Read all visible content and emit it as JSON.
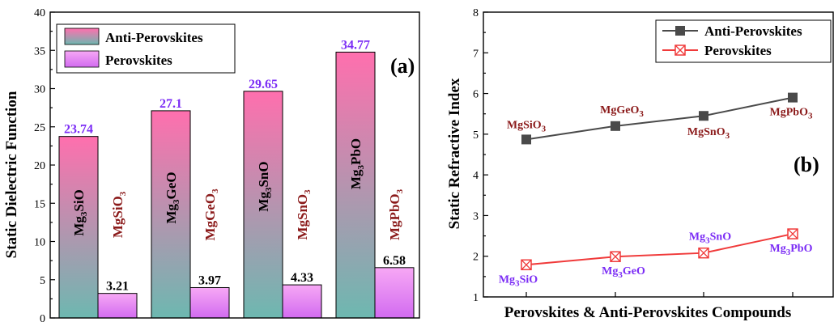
{
  "chart_data": [
    {
      "type": "bar",
      "panel": "(a)",
      "ylabel": "Static Dielectric Function",
      "ylim": [
        0,
        40
      ],
      "yticks": [
        0,
        5,
        10,
        15,
        20,
        25,
        30,
        35,
        40
      ],
      "legend_position": "top-left",
      "series": [
        {
          "name": "Anti-Perovskites",
          "color_top": "#FF6FAE",
          "color_bottom": "#6DB8B0",
          "values": [
            23.74,
            27.1,
            29.65,
            34.77
          ],
          "labels": [
            "23.74",
            "27.1",
            "29.65",
            "34.77"
          ],
          "compounds": [
            {
              "base": "Mg",
              "sub": "3",
              "rest": "SiO"
            },
            {
              "base": "Mg",
              "sub": "3",
              "rest": "GeO"
            },
            {
              "base": "Mg",
              "sub": "3",
              "rest": "SnO"
            },
            {
              "base": "Mg",
              "sub": "3",
              "rest": "PbO"
            }
          ]
        },
        {
          "name": "Perovskites",
          "color_top": "#F7A8F5",
          "color_bottom": "#D26BF0",
          "values": [
            3.21,
            3.97,
            4.33,
            6.58
          ],
          "labels": [
            "3.21",
            "3.97",
            "4.33",
            "6.58"
          ],
          "compounds": [
            {
              "base": "MgSiO",
              "sub": "3",
              "rest": ""
            },
            {
              "base": "MgGeO",
              "sub": "3",
              "rest": ""
            },
            {
              "base": "MgSnO",
              "sub": "3",
              "rest": ""
            },
            {
              "base": "MgPbO",
              "sub": "3",
              "rest": ""
            }
          ]
        }
      ]
    },
    {
      "type": "line",
      "panel": "(b)",
      "xlabel": "Perovskites & Anti-Perovskites Compounds",
      "ylabel": "Static Refractive Index",
      "ylim": [
        1,
        8
      ],
      "yticks": [
        1,
        2,
        3,
        4,
        5,
        6,
        7,
        8
      ],
      "legend_position": "top-right",
      "series": [
        {
          "name": "Anti-Perovskites",
          "color": "#4A4A4A",
          "marker": "square",
          "values": [
            4.87,
            5.2,
            5.45,
            5.9
          ],
          "point_labels": [
            {
              "base": "MgSiO",
              "sub": "3",
              "rest": ""
            },
            {
              "base": "MgGeO",
              "sub": "3",
              "rest": ""
            },
            {
              "base": "MgSnO",
              "sub": "3",
              "rest": ""
            },
            {
              "base": "MgPbO",
              "sub": "3",
              "rest": ""
            }
          ]
        },
        {
          "name": "Perovskites",
          "color": "#F03A3A",
          "marker": "crossed-square",
          "values": [
            1.79,
            1.99,
            2.08,
            2.55
          ],
          "point_labels": [
            {
              "base": "Mg",
              "sub": "3",
              "rest": "SiO"
            },
            {
              "base": "Mg",
              "sub": "3",
              "rest": "GeO"
            },
            {
              "base": "Mg",
              "sub": "3",
              "rest": "SnO"
            },
            {
              "base": "Mg",
              "sub": "3",
              "rest": "PbO"
            }
          ]
        }
      ]
    }
  ]
}
